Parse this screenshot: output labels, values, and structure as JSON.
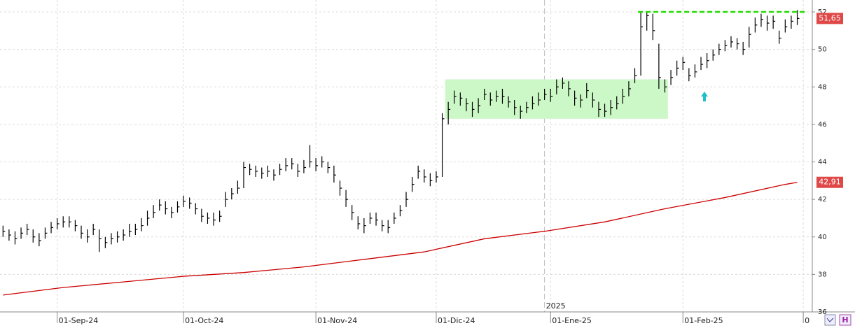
{
  "chart_data": {
    "type": "hlc",
    "bar_color": "#000000",
    "high": [
      40.6,
      40.4,
      40.3,
      40.5,
      40.7,
      40.4,
      40.2,
      40.5,
      40.8,
      41.0,
      41.1,
      41.1,
      40.9,
      40.6,
      40.4,
      40.7,
      40.4,
      40.0,
      40.2,
      40.3,
      40.4,
      40.7,
      40.7,
      41.0,
      41.4,
      41.7,
      42.0,
      41.9,
      41.6,
      41.9,
      42.2,
      42.1,
      41.8,
      41.5,
      41.3,
      41.3,
      41.4,
      42.4,
      42.6,
      43.0,
      44.0,
      43.9,
      43.8,
      43.7,
      43.8,
      43.6,
      43.9,
      44.2,
      44.2,
      43.9,
      44.1,
      44.9,
      44.2,
      44.3,
      44.0,
      43.8,
      43.0,
      42.5,
      41.7,
      41.1,
      41.0,
      41.3,
      41.3,
      40.9,
      40.9,
      41.3,
      41.7,
      42.4,
      43.2,
      43.8,
      43.6,
      43.4,
      43.5,
      46.6,
      47.2,
      47.8,
      47.7,
      47.4,
      47.2,
      47.4,
      47.9,
      47.7,
      47.8,
      47.9,
      47.5,
      47.3,
      47.0,
      47.2,
      47.5,
      47.7,
      47.9,
      47.9,
      48.4,
      48.5,
      48.3,
      47.8,
      47.6,
      48.2,
      47.7,
      47.2,
      47.1,
      47.3,
      47.5,
      47.9,
      48.3,
      49.0,
      52.0,
      52.0,
      51.9,
      50.3,
      48.4,
      48.9,
      49.4,
      49.6,
      49.0,
      49.2,
      49.6,
      49.8,
      50.0,
      50.3,
      50.5,
      50.7,
      50.6,
      50.4,
      51.2,
      51.7,
      51.9,
      51.8,
      51.8,
      51.0,
      51.6,
      51.8,
      52.1
    ],
    "low": [
      40.0,
      39.8,
      39.6,
      39.9,
      40.1,
      39.7,
      39.5,
      39.9,
      40.2,
      40.4,
      40.5,
      40.5,
      40.3,
      39.9,
      39.7,
      40.1,
      39.2,
      39.4,
      39.6,
      39.7,
      39.8,
      40.0,
      40.1,
      40.3,
      40.6,
      41.0,
      41.4,
      41.2,
      41.0,
      41.3,
      41.6,
      41.5,
      41.2,
      40.8,
      40.7,
      40.6,
      40.8,
      41.6,
      42.0,
      42.3,
      42.6,
      43.3,
      43.2,
      43.1,
      43.2,
      43.0,
      43.3,
      43.5,
      43.6,
      43.2,
      43.4,
      43.7,
      43.5,
      43.7,
      43.4,
      42.9,
      42.2,
      41.6,
      40.9,
      40.4,
      40.2,
      40.7,
      40.6,
      40.3,
      40.2,
      40.7,
      41.1,
      41.6,
      42.4,
      43.1,
      42.9,
      42.7,
      42.9,
      43.2,
      46.0,
      47.1,
      47.0,
      46.7,
      46.4,
      46.6,
      47.3,
      47.0,
      47.2,
      47.1,
      46.9,
      46.5,
      46.3,
      46.6,
      46.8,
      47.0,
      47.3,
      47.2,
      47.6,
      47.9,
      47.5,
      47.0,
      46.9,
      47.4,
      46.9,
      46.4,
      46.4,
      46.5,
      46.8,
      47.1,
      47.5,
      48.2,
      48.6,
      51.0,
      50.5,
      47.9,
      47.7,
      48.1,
      48.6,
      48.9,
      48.3,
      48.5,
      48.9,
      49.0,
      49.4,
      49.7,
      49.9,
      50.1,
      50.0,
      49.7,
      50.1,
      50.9,
      51.2,
      51.0,
      51.1,
      50.3,
      50.9,
      51.1,
      51.3
    ],
    "close": [
      40.3,
      40.1,
      39.9,
      40.2,
      40.4,
      40.0,
      39.8,
      40.2,
      40.5,
      40.7,
      40.8,
      40.8,
      40.6,
      40.2,
      40.0,
      40.4,
      39.9,
      39.7,
      39.9,
      40.0,
      40.1,
      40.3,
      40.4,
      40.6,
      41.0,
      41.3,
      41.7,
      41.5,
      41.3,
      41.6,
      41.9,
      41.8,
      41.5,
      41.1,
      41.0,
      40.9,
      41.1,
      42.0,
      42.3,
      42.6,
      43.7,
      43.6,
      43.5,
      43.4,
      43.5,
      43.3,
      43.6,
      43.8,
      43.9,
      43.5,
      43.7,
      44.0,
      43.8,
      44.0,
      43.7,
      43.3,
      42.6,
      42.0,
      41.3,
      40.7,
      40.6,
      41.0,
      40.9,
      40.6,
      40.5,
      41.0,
      41.4,
      42.0,
      42.8,
      43.5,
      43.2,
      43.0,
      43.2,
      46.3,
      46.8,
      47.5,
      47.4,
      47.1,
      46.8,
      47.0,
      47.6,
      47.3,
      47.5,
      47.5,
      47.2,
      46.9,
      46.7,
      46.9,
      47.1,
      47.3,
      47.6,
      47.5,
      48.0,
      48.2,
      47.9,
      47.4,
      47.3,
      47.8,
      47.3,
      46.8,
      46.7,
      46.9,
      47.1,
      47.5,
      47.9,
      48.6,
      51.2,
      51.8,
      51.0,
      48.5,
      48.0,
      48.5,
      49.0,
      49.3,
      48.6,
      48.8,
      49.2,
      49.4,
      49.7,
      50.0,
      50.2,
      50.4,
      50.3,
      50.0,
      50.8,
      51.3,
      51.6,
      51.4,
      51.5,
      50.6,
      51.2,
      51.5,
      51.65
    ],
    "moving_average": {
      "color": "#cc0000",
      "x": [
        0,
        10,
        20,
        30,
        40,
        50,
        60,
        70,
        80,
        90,
        100,
        110,
        120,
        130,
        132
      ],
      "values": [
        36.9,
        37.3,
        37.6,
        37.9,
        38.1,
        38.4,
        38.8,
        39.2,
        39.9,
        40.3,
        40.8,
        41.5,
        42.1,
        42.8,
        42.91
      ]
    },
    "xlim": [
      -0.5,
      134.5
    ],
    "ylim": [
      36,
      52
    ],
    "yticks": [
      36,
      38,
      40,
      42,
      44,
      46,
      48,
      50,
      52
    ],
    "xticks": [
      {
        "value": 9,
        "label": "01-Sep-24"
      },
      {
        "value": 30,
        "label": "01-Oct-24"
      },
      {
        "value": 52,
        "label": "01-Nov-24"
      },
      {
        "value": 72,
        "label": "01-Dic-24"
      },
      {
        "value": 91,
        "label": "01-Ene-25"
      },
      {
        "value": 113,
        "label": "01-Feb-25"
      },
      {
        "value": 133,
        "label": "0"
      }
    ],
    "year_marker": {
      "value": 90,
      "label": "2025"
    },
    "last_price": {
      "value": 51.65,
      "label": "51,65"
    },
    "ma_last": {
      "value": 42.91,
      "label": "42,91"
    },
    "resistance": {
      "value": 52,
      "from": 106,
      "color": "#22dd00"
    },
    "zone": {
      "x": [
        73.5,
        110.5
      ],
      "y": [
        46.3,
        48.4
      ],
      "color": "#ccf7c6"
    },
    "grid": true
  }
}
